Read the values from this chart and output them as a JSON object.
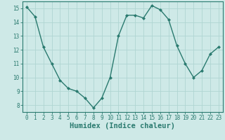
{
  "x": [
    0,
    1,
    2,
    3,
    4,
    5,
    6,
    7,
    8,
    9,
    10,
    11,
    12,
    13,
    14,
    15,
    16,
    17,
    18,
    19,
    20,
    21,
    22,
    23
  ],
  "y": [
    15.1,
    14.4,
    12.2,
    11.0,
    9.8,
    9.2,
    9.0,
    8.5,
    7.8,
    8.5,
    10.0,
    13.0,
    14.5,
    14.5,
    14.3,
    15.2,
    14.9,
    14.2,
    12.3,
    11.0,
    10.0,
    10.5,
    11.7,
    12.2
  ],
  "line_color": "#2a7a6f",
  "marker": "D",
  "marker_size": 2.0,
  "bg_color": "#cee9e7",
  "grid_color": "#afd5d2",
  "xlabel": "Humidex (Indice chaleur)",
  "xlim": [
    -0.5,
    23.5
  ],
  "ylim": [
    7.5,
    15.5
  ],
  "yticks": [
    8,
    9,
    10,
    11,
    12,
    13,
    14,
    15
  ],
  "xticks": [
    0,
    1,
    2,
    3,
    4,
    5,
    6,
    7,
    8,
    9,
    10,
    11,
    12,
    13,
    14,
    15,
    16,
    17,
    18,
    19,
    20,
    21,
    22,
    23
  ],
  "tick_label_fontsize": 5.5,
  "xlabel_fontsize": 7.5,
  "line_width": 1.0
}
